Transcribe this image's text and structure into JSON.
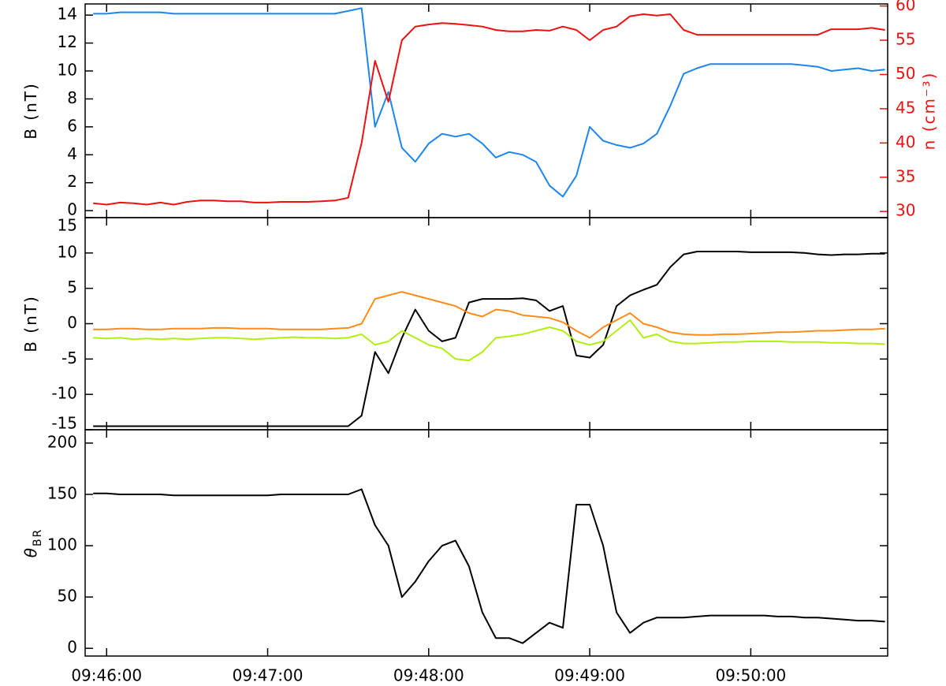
{
  "chart_data": [
    {
      "type": "line",
      "ylabel": "B (nT)",
      "y2label": "n (cm⁻³)",
      "y2color": "#ee1111",
      "xlim": [
        "09:45:52",
        "09:50:51"
      ],
      "x": [
        "09:45:55",
        "09:46:00",
        "09:46:05",
        "09:46:10",
        "09:46:15",
        "09:46:20",
        "09:46:25",
        "09:46:30",
        "09:46:35",
        "09:46:40",
        "09:46:45",
        "09:46:50",
        "09:46:55",
        "09:47:00",
        "09:47:05",
        "09:47:10",
        "09:47:15",
        "09:47:20",
        "09:47:25",
        "09:47:30",
        "09:47:35",
        "09:47:40",
        "09:47:45",
        "09:47:50",
        "09:47:55",
        "09:48:00",
        "09:48:05",
        "09:48:10",
        "09:48:15",
        "09:48:20",
        "09:48:25",
        "09:48:30",
        "09:48:35",
        "09:48:40",
        "09:48:45",
        "09:48:50",
        "09:48:55",
        "09:49:00",
        "09:49:05",
        "09:49:10",
        "09:49:15",
        "09:49:20",
        "09:49:25",
        "09:49:30",
        "09:49:35",
        "09:49:40",
        "09:49:45",
        "09:49:50",
        "09:49:55",
        "09:50:00",
        "09:50:05",
        "09:50:10",
        "09:50:15",
        "09:50:20",
        "09:50:25",
        "09:50:30",
        "09:50:35",
        "09:50:40",
        "09:50:45",
        "09:50:50"
      ],
      "ylim": [
        -0.5,
        14.8
      ],
      "yticks": [
        0,
        2,
        4,
        6,
        8,
        10,
        12,
        14
      ],
      "y2lim": [
        29.1,
        60.3
      ],
      "y2ticks": [
        30,
        35,
        40,
        45,
        50,
        55,
        60
      ],
      "series": [
        {
          "color": "#1c86ee",
          "values": [
            14.1,
            14.1,
            14.2,
            14.2,
            14.2,
            14.2,
            14.1,
            14.1,
            14.1,
            14.1,
            14.1,
            14.1,
            14.1,
            14.1,
            14.1,
            14.1,
            14.1,
            14.1,
            14.1,
            14.3,
            14.5,
            6,
            8.5,
            4.5,
            3.5,
            4.8,
            5.5,
            5.3,
            5.5,
            4.8,
            3.8,
            4.2,
            4.0,
            3.5,
            1.8,
            1.0,
            2.5,
            6.0,
            5.0,
            4.7,
            4.5,
            4.8,
            5.5,
            7.5,
            9.8,
            10.2,
            10.5,
            10.5,
            10.5,
            10.5,
            10.5,
            10.5,
            10.5,
            10.4,
            10.3,
            10.0,
            10.1,
            10.2,
            10.0,
            10.1
          ]
        },
        {
          "color": "#ee1111",
          "axis": "y2",
          "values": [
            31.2,
            31.0,
            31.3,
            31.2,
            31.0,
            31.3,
            31.0,
            31.4,
            31.6,
            31.6,
            31.5,
            31.5,
            31.3,
            31.3,
            31.4,
            31.4,
            31.4,
            31.5,
            31.6,
            32.0,
            40,
            52,
            46,
            55,
            57,
            57.3,
            57.5,
            57.4,
            57.2,
            57.0,
            56.5,
            56.3,
            56.3,
            56.5,
            56.4,
            57.0,
            56.5,
            55.0,
            56.5,
            57.0,
            58.5,
            58.8,
            58.6,
            58.8,
            56.5,
            55.8,
            55.8,
            55.8,
            55.8,
            55.8,
            55.8,
            55.8,
            55.8,
            55.8,
            55.8,
            56.6,
            56.6,
            56.6,
            56.8,
            56.5
          ]
        }
      ]
    },
    {
      "type": "line",
      "ylabel": "B (nT)",
      "xlim": [
        "09:45:52",
        "09:50:51"
      ],
      "x": [
        "09:45:55",
        "09:46:00",
        "09:46:05",
        "09:46:10",
        "09:46:15",
        "09:46:20",
        "09:46:25",
        "09:46:30",
        "09:46:35",
        "09:46:40",
        "09:46:45",
        "09:46:50",
        "09:46:55",
        "09:47:00",
        "09:47:05",
        "09:47:10",
        "09:47:15",
        "09:47:20",
        "09:47:25",
        "09:47:30",
        "09:47:35",
        "09:47:40",
        "09:47:45",
        "09:47:50",
        "09:47:55",
        "09:48:00",
        "09:48:05",
        "09:48:10",
        "09:48:15",
        "09:48:20",
        "09:48:25",
        "09:48:30",
        "09:48:35",
        "09:48:40",
        "09:48:45",
        "09:48:50",
        "09:48:55",
        "09:49:00",
        "09:49:05",
        "09:49:10",
        "09:49:15",
        "09:49:20",
        "09:49:25",
        "09:49:30",
        "09:49:35",
        "09:49:40",
        "09:49:45",
        "09:49:50",
        "09:49:55",
        "09:50:00",
        "09:50:05",
        "09:50:10",
        "09:50:15",
        "09:50:20",
        "09:50:25",
        "09:50:30",
        "09:50:35",
        "09:50:40",
        "09:50:45",
        "09:50:50"
      ],
      "ylim": [
        -15,
        15
      ],
      "yticks": [
        -15,
        -10,
        -5,
        0,
        5,
        10,
        15
      ],
      "series": [
        {
          "color": "#000000",
          "values": [
            -14.5,
            -14.5,
            -14.5,
            -14.5,
            -14.5,
            -14.5,
            -14.5,
            -14.5,
            -14.5,
            -14.5,
            -14.5,
            -14.5,
            -14.5,
            -14.5,
            -14.5,
            -14.5,
            -14.5,
            -14.5,
            -14.5,
            -14.5,
            -13,
            -4,
            -7,
            -2,
            2,
            -1,
            -2.5,
            -2,
            3,
            3.5,
            3.5,
            3.5,
            3.6,
            3.3,
            1.8,
            2.5,
            -4.5,
            -4.8,
            -3,
            2.5,
            4,
            4.8,
            5.5,
            8,
            9.8,
            10.2,
            10.2,
            10.2,
            10.2,
            10.1,
            10.1,
            10.1,
            10.1,
            10.0,
            9.8,
            9.7,
            9.8,
            9.8,
            9.9,
            9.9
          ]
        },
        {
          "color": "#ff8c1a",
          "values": [
            -0.8,
            -0.8,
            -0.7,
            -0.7,
            -0.8,
            -0.8,
            -0.7,
            -0.7,
            -0.7,
            -0.6,
            -0.6,
            -0.7,
            -0.7,
            -0.7,
            -0.8,
            -0.8,
            -0.8,
            -0.8,
            -0.7,
            -0.6,
            0,
            3.5,
            4,
            4.5,
            4,
            3.5,
            3,
            2.5,
            1.5,
            1,
            2,
            1.8,
            1.2,
            1,
            0.8,
            0.2,
            -1,
            -2,
            -0.5,
            0.5,
            1.5,
            0,
            -0.5,
            -1.2,
            -1.5,
            -1.6,
            -1.6,
            -1.5,
            -1.5,
            -1.4,
            -1.3,
            -1.2,
            -1.2,
            -1.1,
            -1.0,
            -1.0,
            -0.9,
            -0.8,
            -0.8,
            -0.7
          ]
        },
        {
          "color": "#b2ee11",
          "values": [
            -2.0,
            -2.1,
            -2.0,
            -2.2,
            -2.1,
            -2.2,
            -2.1,
            -2.2,
            -2.1,
            -2.0,
            -2.0,
            -2.1,
            -2.2,
            -2.1,
            -2.0,
            -1.9,
            -2.0,
            -2.0,
            -2.1,
            -2.0,
            -1.5,
            -3,
            -2.5,
            -1,
            -2,
            -3,
            -3.5,
            -5,
            -5.2,
            -4,
            -2,
            -1.8,
            -1.5,
            -1,
            -0.5,
            -1,
            -2.5,
            -3,
            -2.5,
            -1,
            0.5,
            -2,
            -1.5,
            -2.5,
            -2.8,
            -2.8,
            -2.7,
            -2.6,
            -2.6,
            -2.5,
            -2.5,
            -2.5,
            -2.6,
            -2.6,
            -2.6,
            -2.7,
            -2.7,
            -2.8,
            -2.8,
            -2.9
          ]
        }
      ]
    },
    {
      "type": "line",
      "ylabel": "θ",
      "ylabel_subscript": "BR",
      "xlim": [
        "09:45:52",
        "09:50:51"
      ],
      "xticks": [
        "09:46:00",
        "09:47:00",
        "09:48:00",
        "09:49:00",
        "09:50:00"
      ],
      "x": [
        "09:45:55",
        "09:46:00",
        "09:46:05",
        "09:46:10",
        "09:46:15",
        "09:46:20",
        "09:46:25",
        "09:46:30",
        "09:46:35",
        "09:46:40",
        "09:46:45",
        "09:46:50",
        "09:46:55",
        "09:47:00",
        "09:47:05",
        "09:47:10",
        "09:47:15",
        "09:47:20",
        "09:47:25",
        "09:47:30",
        "09:47:35",
        "09:47:40",
        "09:47:45",
        "09:47:50",
        "09:47:55",
        "09:48:00",
        "09:48:05",
        "09:48:10",
        "09:48:15",
        "09:48:20",
        "09:48:25",
        "09:48:30",
        "09:48:35",
        "09:48:40",
        "09:48:45",
        "09:48:50",
        "09:48:55",
        "09:49:00",
        "09:49:05",
        "09:49:10",
        "09:49:15",
        "09:49:20",
        "09:49:25",
        "09:49:30",
        "09:49:35",
        "09:49:40",
        "09:49:45",
        "09:49:50",
        "09:49:55",
        "09:50:00",
        "09:50:05",
        "09:50:10",
        "09:50:15",
        "09:50:20",
        "09:50:25",
        "09:50:30",
        "09:50:35",
        "09:50:40",
        "09:50:45",
        "09:50:50"
      ],
      "ylim": [
        -7.5,
        213
      ],
      "yticks": [
        0,
        50,
        100,
        150,
        200
      ],
      "series": [
        {
          "color": "#000000",
          "values": [
            151,
            151,
            150,
            150,
            150,
            150,
            149,
            149,
            149,
            149,
            149,
            149,
            149,
            149,
            150,
            150,
            150,
            150,
            150,
            150,
            155,
            120,
            100,
            50,
            65,
            85,
            100,
            105,
            80,
            35,
            10,
            10,
            5,
            15,
            25,
            20,
            140,
            140,
            100,
            35,
            15,
            25,
            30,
            30,
            30,
            31,
            32,
            32,
            32,
            32,
            32,
            31,
            31,
            30,
            30,
            29,
            28,
            27,
            27,
            26
          ]
        }
      ]
    }
  ]
}
